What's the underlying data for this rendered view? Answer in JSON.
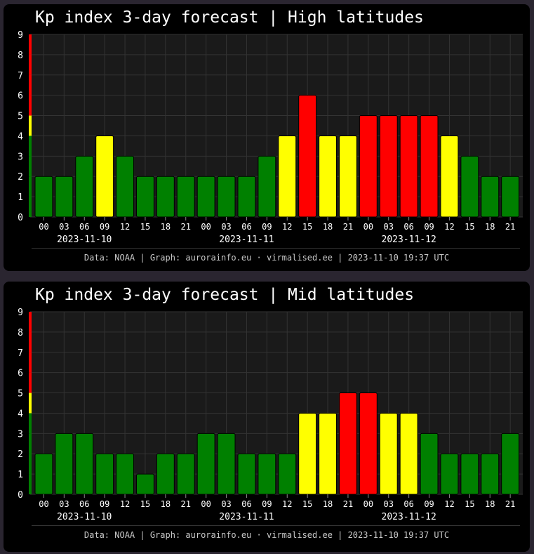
{
  "chart_data": [
    {
      "type": "bar",
      "title": "Kp index 3-day forecast | High latitudes",
      "categories": [
        "00",
        "03",
        "06",
        "09",
        "12",
        "15",
        "18",
        "21",
        "00",
        "03",
        "06",
        "09",
        "12",
        "15",
        "18",
        "21",
        "00",
        "03",
        "06",
        "09",
        "12",
        "15",
        "18",
        "21"
      ],
      "dates": [
        "2023-11-10",
        "2023-11-11",
        "2023-11-12"
      ],
      "values": [
        2,
        2,
        3,
        4,
        3,
        2,
        2,
        2,
        2,
        2,
        2,
        3,
        4,
        6,
        4,
        4,
        5,
        5,
        5,
        5,
        4,
        3,
        2,
        2
      ],
      "ylim": [
        0,
        9
      ],
      "yticks": [
        "0",
        "1",
        "2",
        "3",
        "4",
        "5",
        "6",
        "7",
        "8",
        "9"
      ],
      "grid": true,
      "footer": "Data: NOAA | Graph: aurorainfo.eu · virmalised.ee | 2023-11-10 19:37 UTC"
    },
    {
      "type": "bar",
      "title": "Kp index 3-day forecast | Mid latitudes",
      "categories": [
        "00",
        "03",
        "06",
        "09",
        "12",
        "15",
        "18",
        "21",
        "00",
        "03",
        "06",
        "09",
        "12",
        "15",
        "18",
        "21",
        "00",
        "03",
        "06",
        "09",
        "12",
        "15",
        "18",
        "21"
      ],
      "dates": [
        "2023-11-10",
        "2023-11-11",
        "2023-11-12"
      ],
      "values": [
        2,
        3,
        3,
        2,
        2,
        1,
        2,
        2,
        3,
        3,
        2,
        2,
        2,
        4,
        4,
        5,
        5,
        4,
        4,
        3,
        2,
        2,
        2,
        3
      ],
      "ylim": [
        0,
        9
      ],
      "yticks": [
        "0",
        "1",
        "2",
        "3",
        "4",
        "5",
        "6",
        "7",
        "8",
        "9"
      ],
      "grid": true,
      "footer": "Data: NOAA | Graph: aurorainfo.eu · virmalised.ee | 2023-11-10 19:37 UTC"
    }
  ],
  "colors": {
    "low": "#008000",
    "moderate": "#ffff00",
    "storm": "#ff0000",
    "plot_background": "#1a1a1a",
    "grid": "#333333",
    "text": "#ffffff",
    "footer_text": "#c8c8c8"
  }
}
